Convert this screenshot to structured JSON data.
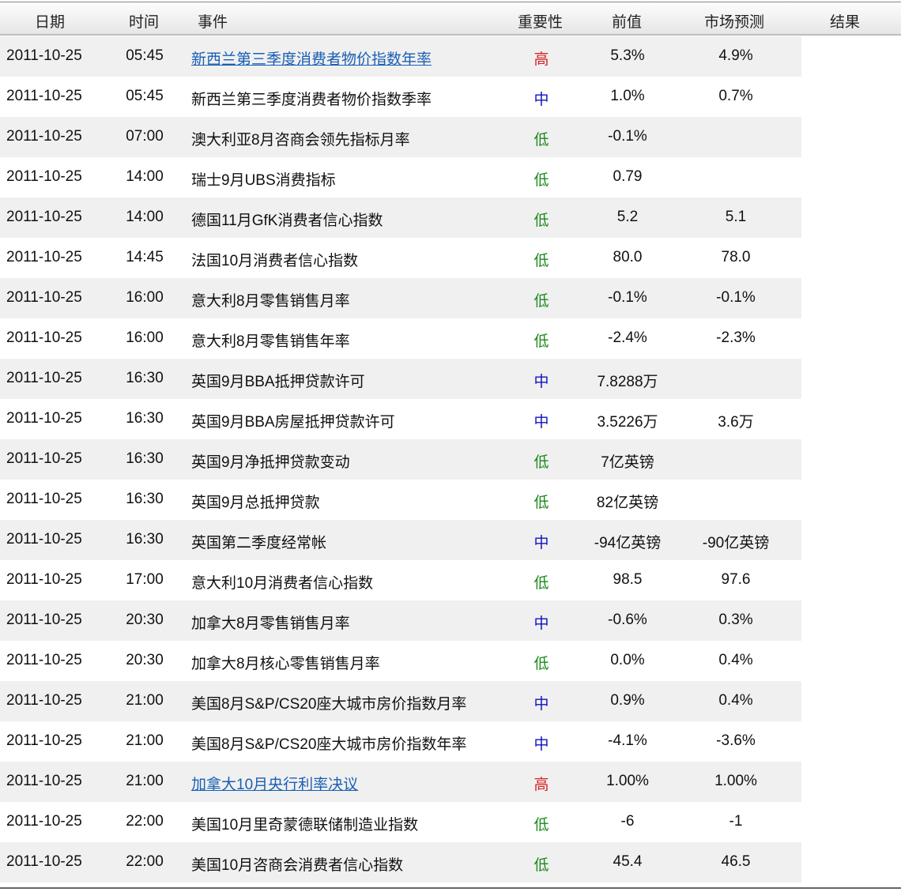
{
  "columns": {
    "date": "日期",
    "time": "时间",
    "event": "事件",
    "importance": "重要性",
    "previous": "前值",
    "forecast": "市场预测",
    "result": "结果"
  },
  "importance_colors": {
    "高": "#d42020",
    "中": "#1010c0",
    "低": "#1a8a1a"
  },
  "rows": [
    {
      "date": "2011-10-25",
      "time": "05:45",
      "event": "新西兰第三季度消费者物价指数年率",
      "link": true,
      "importance": "高",
      "previous": "5.3%",
      "forecast": "4.9%",
      "result": ""
    },
    {
      "date": "2011-10-25",
      "time": "05:45",
      "event": "新西兰第三季度消费者物价指数季率",
      "link": false,
      "importance": "中",
      "previous": "1.0%",
      "forecast": "0.7%",
      "result": ""
    },
    {
      "date": "2011-10-25",
      "time": "07:00",
      "event": "澳大利亚8月咨商会领先指标月率",
      "link": false,
      "importance": "低",
      "previous": "-0.1%",
      "forecast": "",
      "result": ""
    },
    {
      "date": "2011-10-25",
      "time": "14:00",
      "event": "瑞士9月UBS消费指标",
      "link": false,
      "importance": "低",
      "previous": "0.79",
      "forecast": "",
      "result": ""
    },
    {
      "date": "2011-10-25",
      "time": "14:00",
      "event": "德国11月GfK消费者信心指数",
      "link": false,
      "importance": "低",
      "previous": "5.2",
      "forecast": "5.1",
      "result": ""
    },
    {
      "date": "2011-10-25",
      "time": "14:45",
      "event": "法国10月消费者信心指数",
      "link": false,
      "importance": "低",
      "previous": "80.0",
      "forecast": "78.0",
      "result": ""
    },
    {
      "date": "2011-10-25",
      "time": "16:00",
      "event": "意大利8月零售销售月率",
      "link": false,
      "importance": "低",
      "previous": "-0.1%",
      "forecast": "-0.1%",
      "result": ""
    },
    {
      "date": "2011-10-25",
      "time": "16:00",
      "event": "意大利8月零售销售年率",
      "link": false,
      "importance": "低",
      "previous": "-2.4%",
      "forecast": "-2.3%",
      "result": ""
    },
    {
      "date": "2011-10-25",
      "time": "16:30",
      "event": "英国9月BBA抵押贷款许可",
      "link": false,
      "importance": "中",
      "previous": "7.8288万",
      "forecast": "",
      "result": ""
    },
    {
      "date": "2011-10-25",
      "time": "16:30",
      "event": "英国9月BBA房屋抵押贷款许可",
      "link": false,
      "importance": "中",
      "previous": "3.5226万",
      "forecast": "3.6万",
      "result": ""
    },
    {
      "date": "2011-10-25",
      "time": "16:30",
      "event": "英国9月净抵押贷款变动",
      "link": false,
      "importance": "低",
      "previous": "7亿英镑",
      "forecast": "",
      "result": ""
    },
    {
      "date": "2011-10-25",
      "time": "16:30",
      "event": "英国9月总抵押贷款",
      "link": false,
      "importance": "低",
      "previous": "82亿英镑",
      "forecast": "",
      "result": ""
    },
    {
      "date": "2011-10-25",
      "time": "16:30",
      "event": "英国第二季度经常帐",
      "link": false,
      "importance": "中",
      "previous": "-94亿英镑",
      "forecast": "-90亿英镑",
      "result": ""
    },
    {
      "date": "2011-10-25",
      "time": "17:00",
      "event": "意大利10月消费者信心指数",
      "link": false,
      "importance": "低",
      "previous": "98.5",
      "forecast": "97.6",
      "result": ""
    },
    {
      "date": "2011-10-25",
      "time": "20:30",
      "event": "加拿大8月零售销售月率",
      "link": false,
      "importance": "中",
      "previous": "-0.6%",
      "forecast": "0.3%",
      "result": ""
    },
    {
      "date": "2011-10-25",
      "time": "20:30",
      "event": "加拿大8月核心零售销售月率",
      "link": false,
      "importance": "低",
      "previous": "0.0%",
      "forecast": "0.4%",
      "result": ""
    },
    {
      "date": "2011-10-25",
      "time": "21:00",
      "event": "美国8月S&P/CS20座大城市房价指数月率",
      "link": false,
      "importance": "中",
      "previous": "0.9%",
      "forecast": "0.4%",
      "result": ""
    },
    {
      "date": "2011-10-25",
      "time": "21:00",
      "event": "美国8月S&P/CS20座大城市房价指数年率",
      "link": false,
      "importance": "中",
      "previous": "-4.1%",
      "forecast": "-3.6%",
      "result": ""
    },
    {
      "date": "2011-10-25",
      "time": "21:00",
      "event": "加拿大10月央行利率决议",
      "link": true,
      "importance": "高",
      "previous": "1.00%",
      "forecast": "1.00%",
      "result": ""
    },
    {
      "date": "2011-10-25",
      "time": "22:00",
      "event": "美国10月里奇蒙德联储制造业指数",
      "link": false,
      "importance": "低",
      "previous": "-6",
      "forecast": "-1",
      "result": ""
    },
    {
      "date": "2011-10-25",
      "time": "22:00",
      "event": "美国10月咨商会消费者信心指数",
      "link": false,
      "importance": "低",
      "previous": "45.4",
      "forecast": "46.5",
      "result": ""
    }
  ]
}
